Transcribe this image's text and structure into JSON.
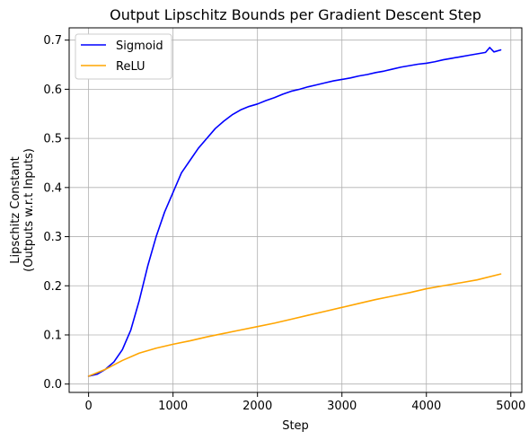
{
  "chart_data": {
    "type": "line",
    "title": "Output Lipschitz Bounds per Gradient Descent Step",
    "xlabel": "Step",
    "ylabel_lines": [
      "Lipschitz Constant",
      "(Outputs w.r.t Inputs)"
    ],
    "xlim": [
      -230,
      5130
    ],
    "ylim": [
      -0.017,
      0.725
    ],
    "xticks": [
      0,
      1000,
      2000,
      3000,
      4000,
      5000
    ],
    "yticks": [
      0.0,
      0.1,
      0.2,
      0.3,
      0.4,
      0.5,
      0.6,
      0.7
    ],
    "grid": true,
    "legend_position": "top-left",
    "series": [
      {
        "name": "Sigmoid",
        "color": "#0000ff",
        "x": [
          0,
          100,
          200,
          300,
          400,
          500,
          600,
          700,
          800,
          900,
          1000,
          1100,
          1200,
          1300,
          1400,
          1500,
          1600,
          1700,
          1800,
          1900,
          2000,
          2100,
          2200,
          2300,
          2400,
          2500,
          2600,
          2700,
          2800,
          2900,
          3000,
          3100,
          3200,
          3300,
          3400,
          3500,
          3600,
          3700,
          3800,
          3900,
          4000,
          4100,
          4200,
          4300,
          4400,
          4500,
          4600,
          4700,
          4750,
          4800,
          4880
        ],
        "y": [
          0.016,
          0.02,
          0.03,
          0.045,
          0.07,
          0.11,
          0.17,
          0.24,
          0.3,
          0.35,
          0.39,
          0.43,
          0.455,
          0.48,
          0.5,
          0.52,
          0.535,
          0.548,
          0.558,
          0.565,
          0.57,
          0.577,
          0.583,
          0.59,
          0.596,
          0.6,
          0.605,
          0.609,
          0.613,
          0.617,
          0.62,
          0.623,
          0.627,
          0.63,
          0.634,
          0.637,
          0.641,
          0.645,
          0.648,
          0.651,
          0.653,
          0.656,
          0.66,
          0.663,
          0.666,
          0.669,
          0.672,
          0.675,
          0.685,
          0.676,
          0.68
        ]
      },
      {
        "name": "ReLU",
        "color": "#ffa500",
        "x": [
          0,
          200,
          400,
          600,
          800,
          1000,
          1200,
          1400,
          1600,
          1800,
          2000,
          2200,
          2400,
          2600,
          2800,
          3000,
          3200,
          3400,
          3600,
          3800,
          4000,
          4200,
          4400,
          4600,
          4880
        ],
        "y": [
          0.016,
          0.03,
          0.048,
          0.063,
          0.073,
          0.081,
          0.088,
          0.096,
          0.103,
          0.11,
          0.117,
          0.124,
          0.132,
          0.14,
          0.148,
          0.156,
          0.164,
          0.172,
          0.179,
          0.186,
          0.194,
          0.2,
          0.206,
          0.212,
          0.224
        ]
      }
    ]
  }
}
